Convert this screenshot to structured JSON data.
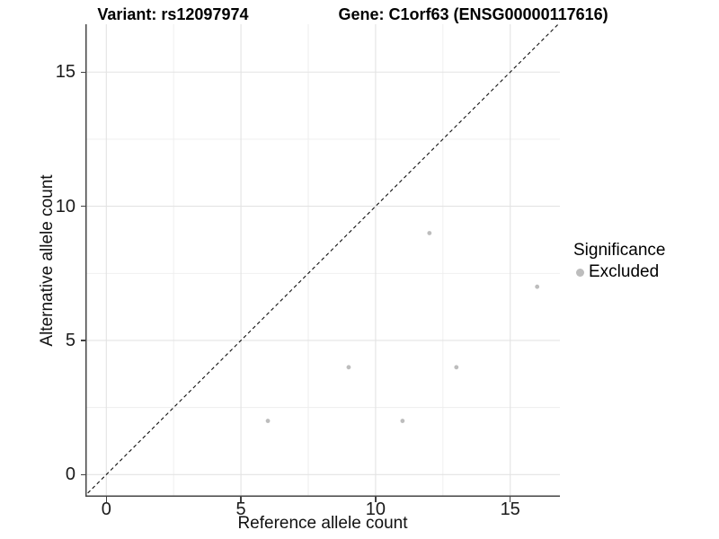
{
  "title": {
    "variant": "Variant: rs12097974",
    "gene": "Gene: C1orf63 (ENSG00000117616)"
  },
  "axes": {
    "x": {
      "label": "Reference allele count"
    },
    "y": {
      "label": "Alternative allele count"
    }
  },
  "legend": {
    "title": "Significance",
    "items": [
      {
        "label": "Excluded",
        "color": "#bdbdbd"
      }
    ]
  },
  "colors": {
    "point": "#bdbdbd",
    "grid_major": "#e3e3e3",
    "grid_minor": "#ededed",
    "axis_line": "#454545",
    "tick_mark": "#404040",
    "identity_line": "#111111",
    "background": "#ffffff"
  },
  "chart_data": {
    "type": "scatter",
    "title": "Variant: rs12097974   Gene: C1orf63 (ENSG00000117616)",
    "xlabel": "Reference allele count",
    "ylabel": "Alternative allele count",
    "xlim": [
      -0.83,
      16.85
    ],
    "ylim": [
      -0.83,
      16.78
    ],
    "x_ticks": [
      0,
      5,
      10,
      15
    ],
    "y_ticks": [
      0,
      5,
      10,
      15
    ],
    "x_minor_ticks": [
      2.5,
      7.5,
      12.5
    ],
    "y_minor_ticks": [
      2.5,
      7.5,
      12.5
    ],
    "grid": true,
    "legend_position": "right",
    "identity_line": {
      "slope": 1,
      "intercept": 0,
      "style": "dashed"
    },
    "series": [
      {
        "name": "Excluded",
        "color": "#bdbdbd",
        "points": [
          [
            6,
            2
          ],
          [
            9,
            4
          ],
          [
            11,
            2
          ],
          [
            12,
            9
          ],
          [
            13,
            4
          ],
          [
            16,
            7
          ]
        ]
      }
    ]
  }
}
